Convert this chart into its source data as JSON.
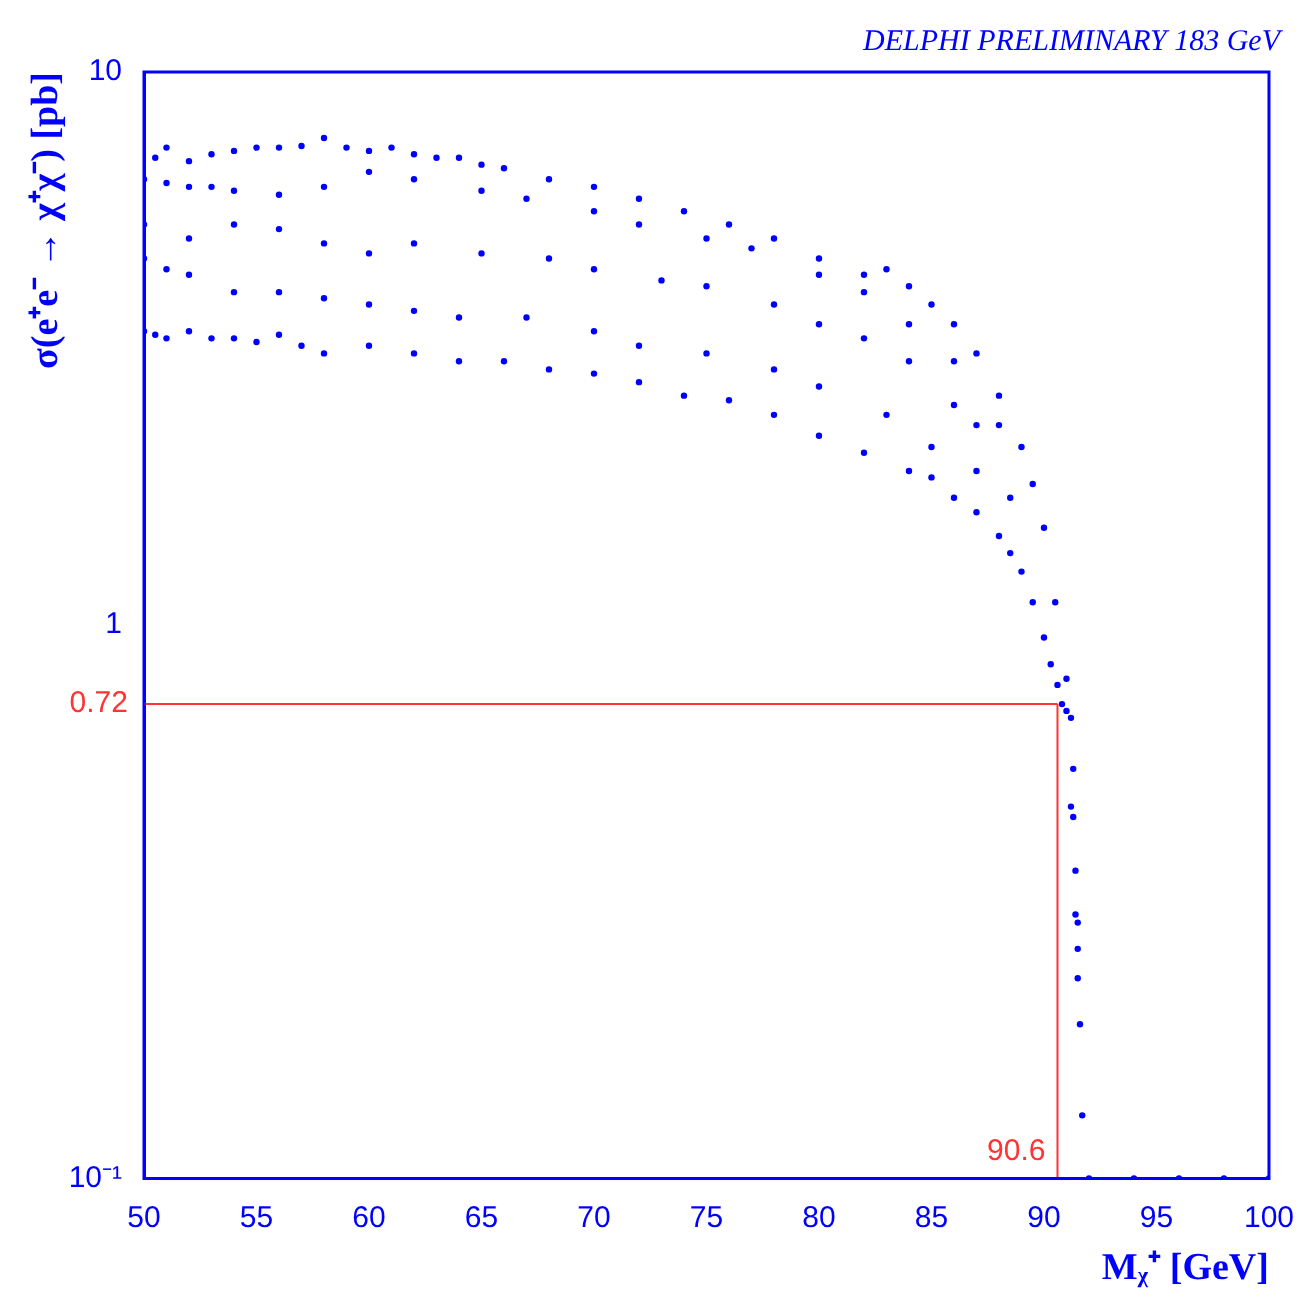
{
  "chart_data": {
    "type": "scatter",
    "title": "DELPHI PRELIMINARY 183 GeV",
    "xlabel": "Mᵪ⁺ [GeV]",
    "ylabel": "σ(e⁺e⁻ → χ⁺χ⁻) [pb]",
    "series": [
      {
        "color": "#0000ff",
        "x": [
          50.5,
          51,
          52,
          53,
          54,
          55,
          56,
          57,
          58,
          59,
          60,
          61,
          62,
          63,
          64,
          65,
          66,
          68,
          70,
          72,
          74,
          76,
          78,
          80,
          82,
          83,
          84,
          85,
          86,
          87,
          88,
          89,
          89.5,
          90,
          90.5,
          91,
          50,
          51,
          52,
          53,
          54,
          56,
          58,
          60,
          62,
          65,
          67,
          70,
          72,
          75,
          77,
          80,
          82,
          84,
          86,
          88,
          50,
          52,
          54,
          56,
          58,
          60,
          62,
          65,
          68,
          70,
          73,
          75,
          78,
          80,
          82,
          84,
          86,
          87,
          50,
          51,
          52,
          54,
          56,
          58,
          60,
          62,
          64,
          67,
          70,
          72,
          75,
          78,
          80,
          83,
          85,
          87,
          88.5,
          50,
          50.5,
          51,
          52,
          53,
          54,
          55,
          56,
          57,
          58,
          60,
          62,
          64,
          66,
          68,
          70,
          72,
          74,
          76,
          78,
          80,
          82,
          84,
          85,
          86,
          87,
          88,
          88.5,
          89,
          89.5,
          90,
          90.3,
          90.6,
          90.8,
          91,
          91.2,
          91.3,
          91.2,
          91.3,
          91.4,
          91.4,
          91.5,
          91.5,
          91.5,
          91.6,
          91.7,
          92,
          94,
          96,
          98,
          100
        ],
        "values": [
          7.0,
          7.3,
          6.9,
          7.1,
          7.2,
          7.3,
          7.3,
          7.35,
          7.6,
          7.3,
          7.2,
          7.3,
          7.1,
          7.0,
          7.0,
          6.8,
          6.7,
          6.4,
          6.2,
          5.9,
          5.6,
          5.3,
          5.0,
          4.6,
          4.3,
          4.4,
          4.1,
          3.8,
          3.5,
          3.1,
          2.6,
          2.1,
          1.8,
          1.5,
          1.1,
          0.8,
          6.4,
          6.3,
          6.2,
          6.2,
          6.1,
          6.0,
          6.2,
          6.6,
          6.4,
          6.1,
          5.9,
          5.6,
          5.3,
          5.0,
          4.8,
          4.3,
          4.0,
          3.5,
          3.0,
          2.3,
          5.3,
          5.0,
          5.3,
          5.2,
          4.9,
          4.7,
          4.9,
          4.7,
          4.6,
          4.4,
          4.2,
          4.1,
          3.8,
          3.5,
          3.3,
          3.0,
          2.5,
          2.3,
          4.6,
          4.4,
          4.3,
          4.0,
          4.0,
          3.9,
          3.8,
          3.7,
          3.6,
          3.6,
          3.4,
          3.2,
          3.1,
          2.9,
          2.7,
          2.4,
          2.1,
          1.9,
          1.7,
          3.4,
          3.35,
          3.3,
          3.4,
          3.3,
          3.3,
          3.25,
          3.35,
          3.2,
          3.1,
          3.2,
          3.1,
          3.0,
          3.0,
          2.9,
          2.85,
          2.75,
          2.6,
          2.55,
          2.4,
          2.2,
          2.05,
          1.9,
          1.85,
          1.7,
          1.6,
          1.45,
          1.35,
          1.25,
          1.1,
          0.95,
          0.85,
          0.78,
          0.72,
          0.7,
          0.68,
          0.55,
          0.47,
          0.45,
          0.36,
          0.3,
          0.29,
          0.26,
          0.23,
          0.19,
          0.13,
          0.1,
          0.1,
          0.1,
          0.1,
          0.1
        ]
      }
    ],
    "xlim": [
      50,
      100
    ],
    "xticks": [
      50,
      55,
      60,
      65,
      70,
      75,
      80,
      85,
      90,
      95,
      100
    ],
    "ylim": [
      0.1,
      10
    ],
    "yticks": [
      {
        "value": 0.1,
        "label": "10⁻¹"
      },
      1,
      10
    ],
    "log": "y",
    "grid": false,
    "legend": false,
    "marker": "circle",
    "ref_lines": [
      {
        "axis": "y",
        "value": 0.72,
        "label": "0.72",
        "color": "#ff3333"
      },
      {
        "axis": "x",
        "value": 90.6,
        "label": "90.6",
        "color": "#ff3333"
      }
    ]
  }
}
